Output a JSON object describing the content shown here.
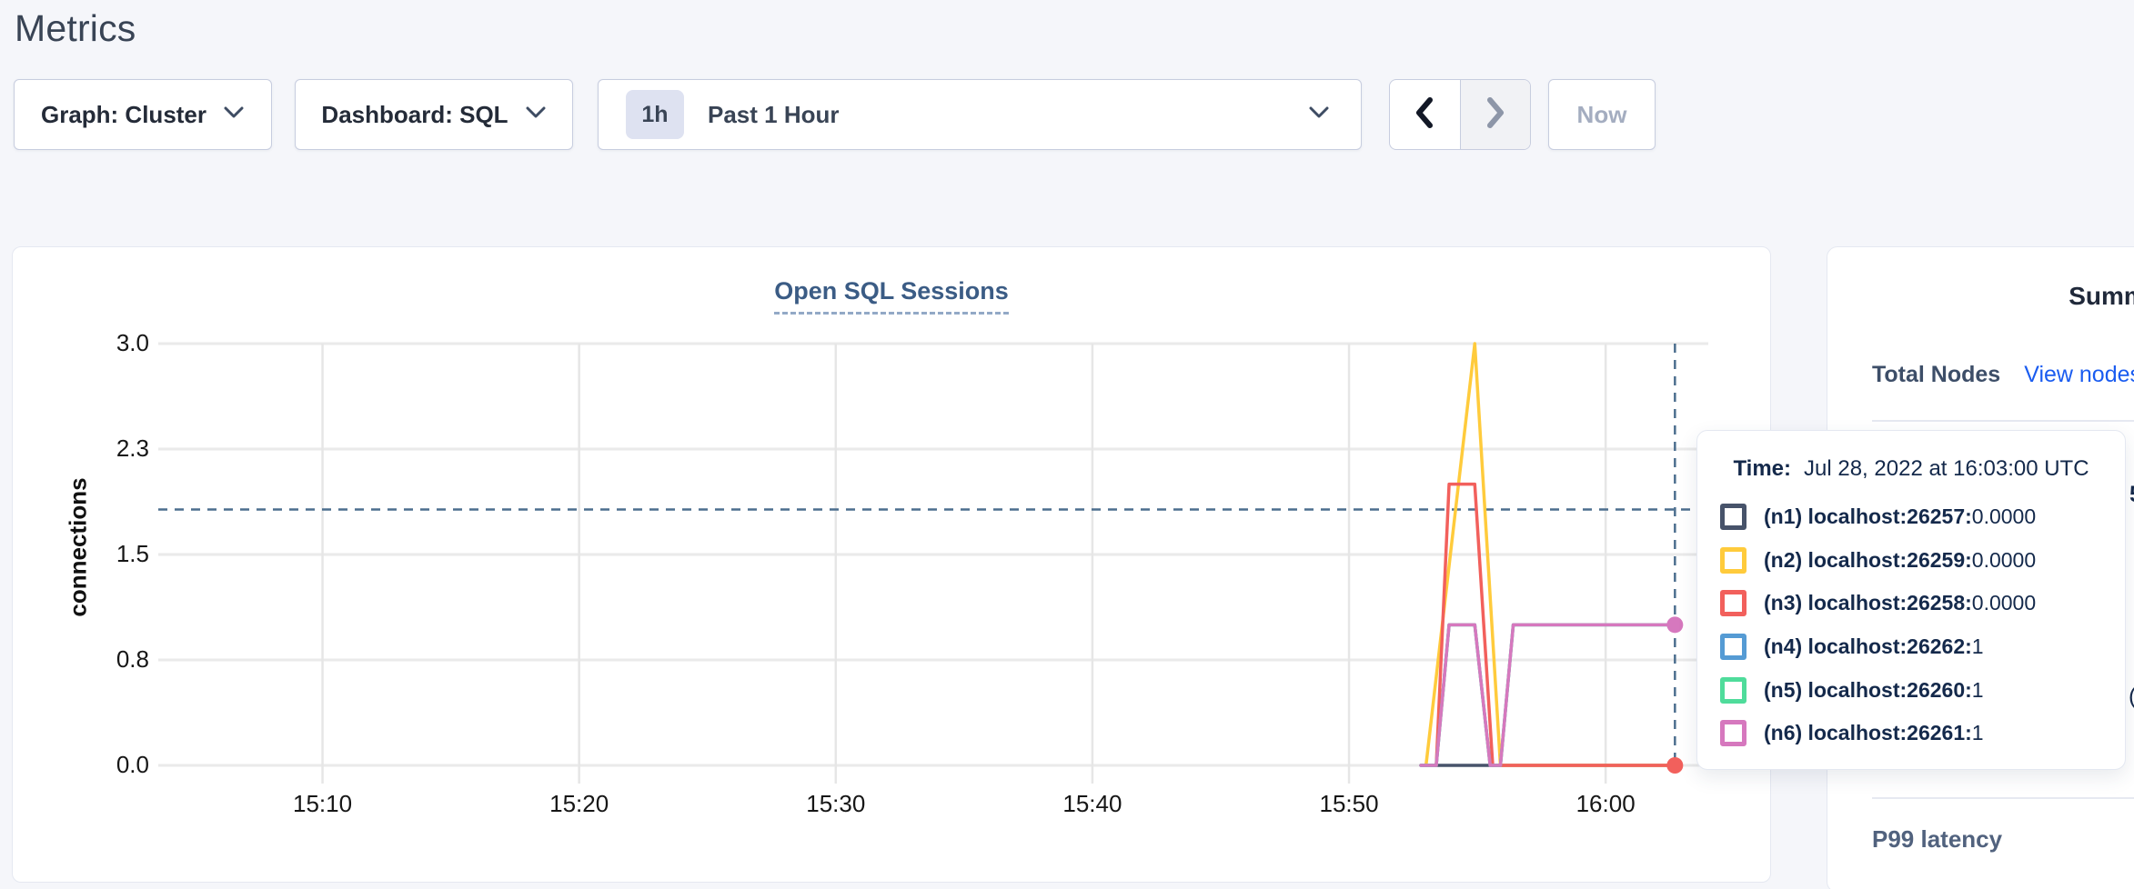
{
  "page_title": "Metrics",
  "toolbar": {
    "graph_dropdown_label": "Graph: Cluster",
    "dashboard_dropdown_label": "Dashboard: SQL",
    "time_range_badge": "1h",
    "time_range_label": "Past 1 Hour",
    "now_button_label": "Now"
  },
  "chart_data": {
    "type": "line",
    "title": "Open SQL Sessions",
    "ylabel": "connections",
    "ylim": [
      0,
      3
    ],
    "grid": true,
    "y_ticks": [
      {
        "value": 0,
        "label": "0.0"
      },
      {
        "value": 0.75,
        "label": "0.8"
      },
      {
        "value": 1.5,
        "label": "1.5"
      },
      {
        "value": 2.25,
        "label": "2.3"
      },
      {
        "value": 3,
        "label": "3.0"
      }
    ],
    "x_domain_minutes_after_1500": [
      3.6,
      64
    ],
    "x_ticks": [
      {
        "minute": 10,
        "label": "15:10"
      },
      {
        "minute": 20,
        "label": "15:20"
      },
      {
        "minute": 30,
        "label": "15:30"
      },
      {
        "minute": 40,
        "label": "15:40"
      },
      {
        "minute": 50,
        "label": "15:50"
      },
      {
        "minute": 60,
        "label": "16:00"
      }
    ],
    "series": [
      {
        "id": "n1",
        "name": "(n1) localhost:26257",
        "color": "#47536A",
        "end_dot": false,
        "points": [
          [
            52.8,
            0
          ],
          [
            62.7,
            0
          ]
        ]
      },
      {
        "id": "n2",
        "name": "(n2) localhost:26259",
        "color": "#FFCB3C",
        "end_dot": false,
        "points": [
          [
            53.0,
            0
          ],
          [
            54.9,
            3
          ],
          [
            55.9,
            0
          ],
          [
            62.7,
            0
          ]
        ]
      },
      {
        "id": "n3",
        "name": "(n3) localhost:26258",
        "color": "#F2605C",
        "end_dot": true,
        "points": [
          [
            53.4,
            0
          ],
          [
            53.9,
            2
          ],
          [
            54.9,
            2
          ],
          [
            55.6,
            0
          ],
          [
            62.7,
            0
          ]
        ]
      },
      {
        "id": "n4",
        "name": "(n4) localhost:26262",
        "color": "#559BD4",
        "end_dot": false,
        "points": [
          [
            52.8,
            0
          ],
          [
            53.4,
            0
          ],
          [
            53.9,
            1
          ],
          [
            54.9,
            1
          ],
          [
            55.5,
            0
          ],
          [
            55.9,
            0
          ],
          [
            56.4,
            1
          ],
          [
            62.7,
            1
          ]
        ]
      },
      {
        "id": "n5",
        "name": "(n5) localhost:26260",
        "color": "#4FDC9B",
        "end_dot": false,
        "points": [
          [
            52.8,
            0
          ],
          [
            53.4,
            0
          ],
          [
            53.9,
            1
          ],
          [
            54.9,
            1
          ],
          [
            55.5,
            0
          ],
          [
            55.9,
            0
          ],
          [
            56.4,
            1
          ],
          [
            62.7,
            1
          ]
        ]
      },
      {
        "id": "n6",
        "name": "(n6) localhost:26261",
        "color": "#D678BE",
        "end_dot": true,
        "points": [
          [
            52.8,
            0
          ],
          [
            53.4,
            0
          ],
          [
            53.9,
            1
          ],
          [
            54.9,
            1
          ],
          [
            55.5,
            0
          ],
          [
            55.9,
            0
          ],
          [
            56.4,
            1
          ],
          [
            62.7,
            1
          ]
        ]
      }
    ],
    "crosshair": {
      "x_minute": 62.7,
      "y_value": 1.82,
      "time": "16:03",
      "color": "#4C6E8E"
    },
    "gridline_color": "#EAEAEA"
  },
  "tooltip": {
    "time_label": "Time:",
    "time_value": "Jul 28, 2022 at 16:03:00 UTC",
    "rows": [
      {
        "node": "(n1) localhost:26257:",
        "value": "0.0000",
        "color": "#47536A"
      },
      {
        "node": "(n2) localhost:26259:",
        "value": "0.0000",
        "color": "#FFCB3C"
      },
      {
        "node": "(n3) localhost:26258:",
        "value": "0.0000",
        "color": "#F2605C"
      },
      {
        "node": "(n4) localhost:26262:",
        "value": "1",
        "color": "#559BD4"
      },
      {
        "node": "(n5) localhost:26260:",
        "value": "1",
        "color": "#4FDC9B"
      },
      {
        "node": "(n6) localhost:26261:",
        "value": "1",
        "color": "#D678BE"
      }
    ]
  },
  "sidebar": {
    "title": "Summary",
    "total_nodes_label": "Total Nodes",
    "view_nodes_link": "View nodes",
    "p99_label": "P99 latency",
    "clipped_fragment_1": "5",
    "clipped_fragment_2": "("
  },
  "colors": {
    "page_background": "#F5F6FA",
    "link_blue": "#1A5CF0",
    "title_slate": "#394455",
    "chart_title_blue": "#3B5C85",
    "crosshair_steel": "#4C6E8E"
  }
}
